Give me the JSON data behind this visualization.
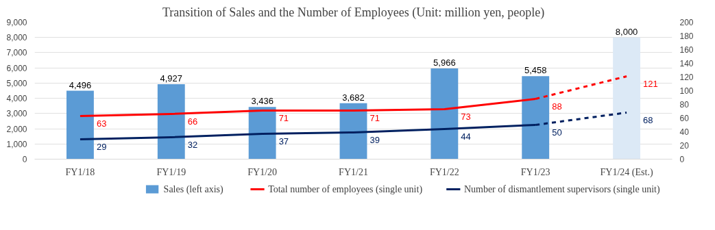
{
  "chart_data": {
    "type": "bar",
    "title": "Transition of Sales and the Number of Employees (Unit: million yen, people)",
    "categories": [
      "FY1/18",
      "FY1/19",
      "FY1/20",
      "FY1/21",
      "FY1/22",
      "FY1/23",
      "FY1/24 (Est.)"
    ],
    "series": [
      {
        "name": "Sales (left axis)",
        "colors": [
          "#5b9bd5",
          "#5b9bd5",
          "#5b9bd5",
          "#5b9bd5",
          "#5b9bd5",
          "#5b9bd5",
          "#dce9f6"
        ],
        "values": [
          4496,
          4927,
          3436,
          3682,
          5966,
          5458,
          8000
        ],
        "value_labels": [
          "4,496",
          "4,927",
          "3,436",
          "3,682",
          "5,966",
          "5,458",
          "8,000"
        ]
      },
      {
        "name": "Total number of employees (single unit)",
        "type": "line",
        "axis": "y2",
        "color": "#ff0000",
        "line_style": "solid",
        "values": [
          63,
          66,
          71,
          71,
          73,
          88,
          null
        ],
        "value_labels": [
          "63",
          "66",
          "71",
          "71",
          "73",
          "88",
          null
        ]
      },
      {
        "type": "line",
        "axis": "y2",
        "color": "#ff0000",
        "line_style": "dashed",
        "values": [
          null,
          null,
          null,
          null,
          null,
          88,
          121
        ],
        "value_labels": [
          null,
          null,
          null,
          null,
          null,
          null,
          "121"
        ]
      },
      {
        "name": "Number of dismantlement supervisors (single unit)",
        "type": "line",
        "axis": "y2",
        "color": "#002060",
        "line_style": "solid",
        "values": [
          29,
          32,
          37,
          39,
          44,
          50,
          null
        ],
        "value_labels": [
          "29",
          "32",
          "37",
          "39",
          "44",
          "50",
          null
        ]
      },
      {
        "type": "line",
        "axis": "y2",
        "color": "#002060",
        "line_style": "dashed",
        "values": [
          null,
          null,
          null,
          null,
          null,
          50,
          68
        ],
        "value_labels": [
          null,
          null,
          null,
          null,
          null,
          null,
          "68"
        ]
      }
    ],
    "ylim": [
      0,
      9000
    ],
    "yticks": [
      {
        "value": 0,
        "label": "0"
      },
      {
        "value": 1000,
        "label": "1,000"
      },
      {
        "value": 2000,
        "label": "2,000"
      },
      {
        "value": 3000,
        "label": "3,000"
      },
      {
        "value": 4000,
        "label": "4,000"
      },
      {
        "value": 5000,
        "label": "5,000"
      },
      {
        "value": 6000,
        "label": "6,000"
      },
      {
        "value": 7000,
        "label": "7,000"
      },
      {
        "value": 8000,
        "label": "8,000"
      },
      {
        "value": 9000,
        "label": "9,000"
      }
    ],
    "y2lim": [
      0,
      200
    ],
    "y2ticks": [
      0,
      20,
      40,
      60,
      80,
      100,
      120,
      140,
      160,
      180,
      200
    ],
    "grid": "y",
    "legend": "bottom"
  }
}
